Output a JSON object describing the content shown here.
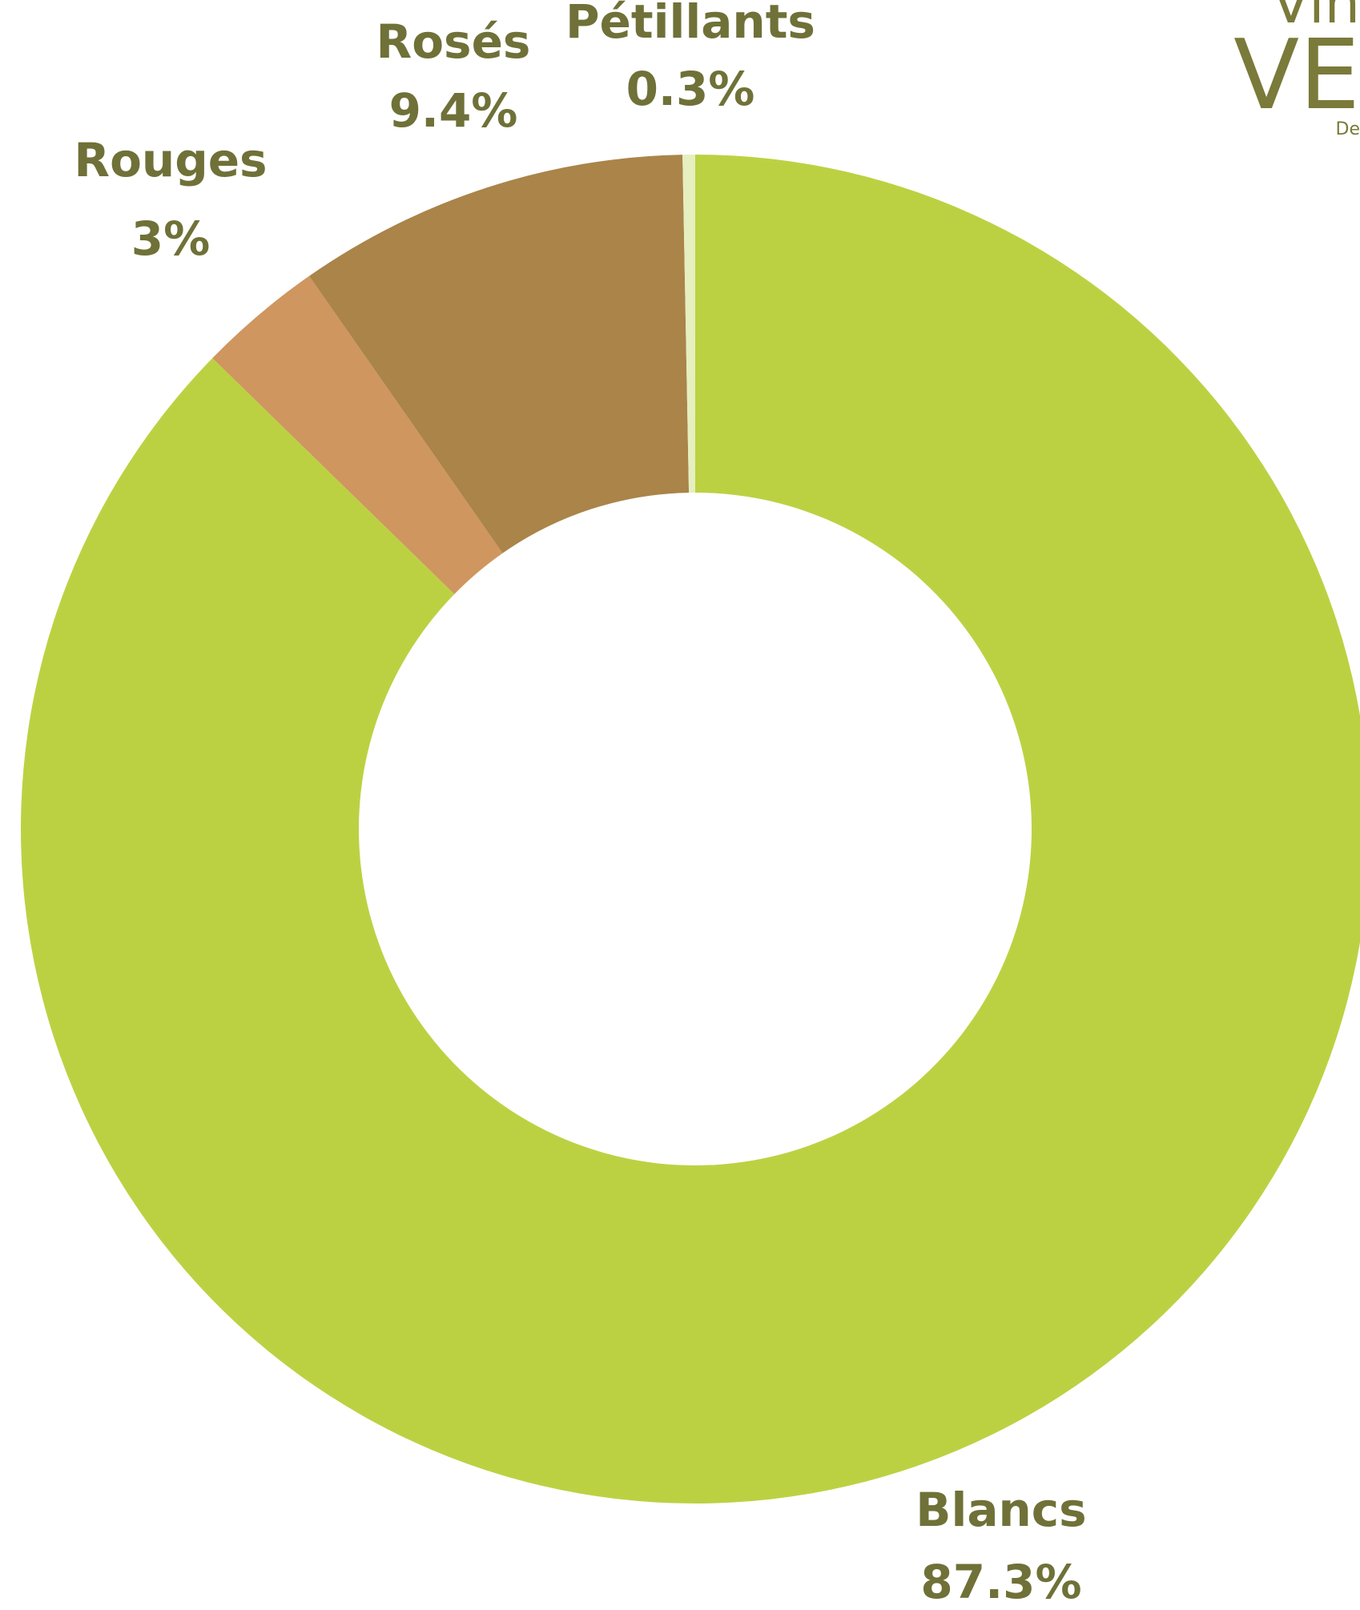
{
  "chart_data": {
    "type": "pie",
    "style": "donut",
    "start": "top, clockwise",
    "slices": [
      {
        "label": "Blancs",
        "value": 87.3,
        "value_label": "87.3%",
        "color": "#bcd142"
      },
      {
        "label": "Rouges",
        "value": 3,
        "value_label": "3%",
        "color": "#cf965f"
      },
      {
        "label": "Rosés",
        "value": 9.4,
        "value_label": "9.4%",
        "color": "#aa8449"
      },
      {
        "label": "Pétillants",
        "value": 0.3,
        "value_label": "0.3%",
        "color": "#e6efc0"
      }
    ],
    "label_color": "#6f7138",
    "legend": "none"
  },
  "logo": {
    "line1": "Vin",
    "line2": "VE",
    "line3": "De",
    "color": "#7a7a3a"
  }
}
